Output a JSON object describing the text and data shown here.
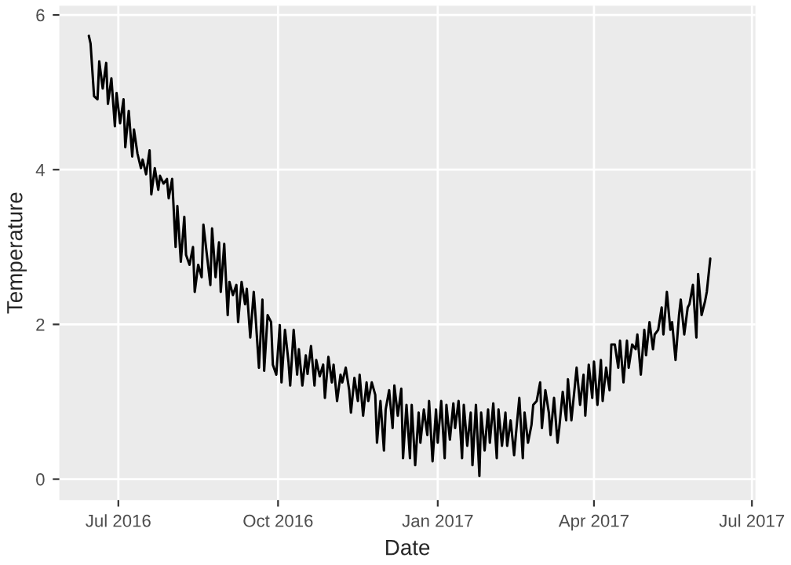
{
  "chart_data": {
    "type": "line",
    "xlabel": "Date",
    "ylabel": "Temperature",
    "xlim": [
      "2016-05-28",
      "2017-07-03"
    ],
    "ylim": [
      -0.27,
      6.12
    ],
    "xticks": [
      {
        "value": "2016-07-01",
        "label": "Jul 2016"
      },
      {
        "value": "2016-10-01",
        "label": "Oct 2016"
      },
      {
        "value": "2017-01-01",
        "label": "Jan 2017"
      },
      {
        "value": "2017-04-01",
        "label": "Apr 2017"
      },
      {
        "value": "2017-07-01",
        "label": "Jul 2017"
      }
    ],
    "yticks": [
      0,
      2,
      4,
      6
    ],
    "grid": true,
    "marker": "none",
    "line_style": "solid",
    "x": [
      "2016-06-14",
      "2016-06-15",
      "2016-06-17",
      "2016-06-19",
      "2016-06-20",
      "2016-06-22",
      "2016-06-24",
      "2016-06-25",
      "2016-06-27",
      "2016-06-29",
      "2016-06-30",
      "2016-07-02",
      "2016-07-04",
      "2016-07-05",
      "2016-07-07",
      "2016-07-09",
      "2016-07-10",
      "2016-07-12",
      "2016-07-14",
      "2016-07-15",
      "2016-07-17",
      "2016-07-19",
      "2016-07-20",
      "2016-07-22",
      "2016-07-24",
      "2016-07-25",
      "2016-07-27",
      "2016-07-29",
      "2016-07-30",
      "2016-08-01",
      "2016-08-03",
      "2016-08-04",
      "2016-08-06",
      "2016-08-08",
      "2016-08-09",
      "2016-08-11",
      "2016-08-13",
      "2016-08-14",
      "2016-08-16",
      "2016-08-18",
      "2016-08-19",
      "2016-08-21",
      "2016-08-23",
      "2016-08-24",
      "2016-08-26",
      "2016-08-28",
      "2016-08-29",
      "2016-08-31",
      "2016-09-02",
      "2016-09-03",
      "2016-09-05",
      "2016-09-07",
      "2016-09-08",
      "2016-09-10",
      "2016-09-12",
      "2016-09-13",
      "2016-09-15",
      "2016-09-17",
      "2016-09-18",
      "2016-09-20",
      "2016-09-22",
      "2016-09-23",
      "2016-09-25",
      "2016-09-27",
      "2016-09-28",
      "2016-09-30",
      "2016-10-02",
      "2016-10-03",
      "2016-10-05",
      "2016-10-07",
      "2016-10-08",
      "2016-10-10",
      "2016-10-12",
      "2016-10-13",
      "2016-10-15",
      "2016-10-17",
      "2016-10-18",
      "2016-10-20",
      "2016-10-22",
      "2016-10-23",
      "2016-10-25",
      "2016-10-27",
      "2016-10-28",
      "2016-10-30",
      "2016-11-01",
      "2016-11-02",
      "2016-11-04",
      "2016-11-06",
      "2016-11-07",
      "2016-11-09",
      "2016-11-11",
      "2016-11-12",
      "2016-11-14",
      "2016-11-16",
      "2016-11-17",
      "2016-11-19",
      "2016-11-21",
      "2016-11-22",
      "2016-11-24",
      "2016-11-26",
      "2016-11-27",
      "2016-11-29",
      "2016-12-01",
      "2016-12-02",
      "2016-12-04",
      "2016-12-06",
      "2016-12-07",
      "2016-12-09",
      "2016-12-11",
      "2016-12-12",
      "2016-12-14",
      "2016-12-16",
      "2016-12-17",
      "2016-12-19",
      "2016-12-21",
      "2016-12-22",
      "2016-12-24",
      "2016-12-26",
      "2016-12-27",
      "2016-12-29",
      "2016-12-31",
      "2017-01-01",
      "2017-01-03",
      "2017-01-05",
      "2017-01-06",
      "2017-01-08",
      "2017-01-10",
      "2017-01-11",
      "2017-01-13",
      "2017-01-15",
      "2017-01-16",
      "2017-01-18",
      "2017-01-20",
      "2017-01-21",
      "2017-01-23",
      "2017-01-25",
      "2017-01-26",
      "2017-01-28",
      "2017-01-30",
      "2017-01-31",
      "2017-02-02",
      "2017-02-04",
      "2017-02-05",
      "2017-02-07",
      "2017-02-09",
      "2017-02-10",
      "2017-02-12",
      "2017-02-14",
      "2017-02-15",
      "2017-02-17",
      "2017-02-19",
      "2017-02-20",
      "2017-02-22",
      "2017-02-24",
      "2017-02-25",
      "2017-02-27",
      "2017-03-01",
      "2017-03-02",
      "2017-03-04",
      "2017-03-06",
      "2017-03-07",
      "2017-03-09",
      "2017-03-11",
      "2017-03-12",
      "2017-03-14",
      "2017-03-16",
      "2017-03-17",
      "2017-03-19",
      "2017-03-21",
      "2017-03-22",
      "2017-03-24",
      "2017-03-26",
      "2017-03-27",
      "2017-03-29",
      "2017-03-31",
      "2017-04-01",
      "2017-04-03",
      "2017-04-05",
      "2017-04-06",
      "2017-04-08",
      "2017-04-10",
      "2017-04-11",
      "2017-04-13",
      "2017-04-15",
      "2017-04-16",
      "2017-04-18",
      "2017-04-20",
      "2017-04-21",
      "2017-04-23",
      "2017-04-25",
      "2017-04-26",
      "2017-04-28",
      "2017-04-30",
      "2017-05-01",
      "2017-05-03",
      "2017-05-05",
      "2017-05-06",
      "2017-05-08",
      "2017-05-10",
      "2017-05-11",
      "2017-05-13",
      "2017-05-15",
      "2017-05-16",
      "2017-05-18",
      "2017-05-20",
      "2017-05-21",
      "2017-05-23",
      "2017-05-25",
      "2017-05-26",
      "2017-05-28",
      "2017-05-30",
      "2017-05-31",
      "2017-06-02",
      "2017-06-04",
      "2017-06-05",
      "2017-06-07"
    ],
    "series": [
      {
        "color": "#000000",
        "values": [
          5.73,
          5.63,
          4.95,
          4.91,
          5.4,
          5.05,
          5.38,
          4.85,
          5.18,
          4.56,
          4.99,
          4.6,
          4.91,
          4.29,
          4.76,
          4.17,
          4.52,
          4.21,
          4.02,
          4.13,
          3.94,
          4.25,
          3.68,
          4.02,
          3.74,
          3.92,
          3.82,
          3.88,
          3.63,
          3.88,
          3.0,
          3.53,
          2.81,
          3.39,
          2.9,
          2.77,
          3.0,
          2.42,
          2.77,
          2.61,
          3.29,
          2.9,
          2.51,
          3.24,
          2.61,
          3.06,
          2.42,
          3.04,
          2.12,
          2.55,
          2.38,
          2.51,
          2.03,
          2.55,
          2.26,
          2.46,
          1.83,
          2.42,
          2.12,
          1.44,
          2.32,
          1.4,
          2.12,
          2.03,
          1.48,
          1.35,
          1.99,
          1.25,
          1.93,
          1.52,
          1.21,
          1.93,
          1.35,
          1.68,
          1.21,
          1.6,
          1.36,
          1.72,
          1.21,
          1.54,
          1.33,
          1.48,
          1.05,
          1.58,
          1.25,
          1.48,
          1.01,
          1.35,
          1.25,
          1.44,
          1.15,
          0.86,
          1.31,
          1.01,
          1.35,
          0.82,
          1.25,
          1.01,
          1.25,
          1.09,
          0.47,
          1.01,
          0.37,
          0.9,
          1.15,
          0.66,
          1.21,
          0.82,
          1.17,
          0.27,
          0.96,
          0.27,
          0.96,
          0.18,
          0.86,
          0.47,
          0.9,
          0.57,
          1.01,
          0.23,
          0.9,
          0.47,
          1.01,
          0.27,
          0.96,
          0.51,
          0.98,
          0.66,
          1.01,
          0.27,
          0.96,
          0.43,
          0.86,
          0.18,
          0.96,
          0.04,
          0.86,
          0.37,
          0.9,
          0.47,
          0.98,
          0.27,
          0.9,
          0.43,
          0.86,
          0.43,
          0.76,
          0.31,
          0.57,
          1.05,
          0.27,
          0.86,
          0.47,
          0.7,
          0.96,
          1.01,
          1.25,
          0.66,
          1.15,
          0.86,
          0.57,
          1.05,
          0.47,
          0.66,
          1.13,
          0.76,
          1.29,
          0.76,
          1.21,
          1.44,
          0.96,
          1.35,
          0.82,
          1.48,
          1.05,
          1.52,
          0.96,
          1.54,
          1.01,
          1.44,
          1.15,
          1.74,
          1.74,
          1.44,
          1.79,
          1.25,
          1.79,
          1.44,
          1.74,
          1.68,
          1.87,
          1.35,
          1.93,
          1.6,
          2.03,
          1.68,
          1.87,
          1.93,
          2.22,
          1.87,
          2.42,
          1.93,
          2.03,
          1.54,
          2.12,
          2.32,
          1.87,
          2.22,
          2.26,
          2.51,
          1.83,
          2.65,
          2.12,
          2.3,
          2.42,
          2.85
        ]
      }
    ]
  }
}
